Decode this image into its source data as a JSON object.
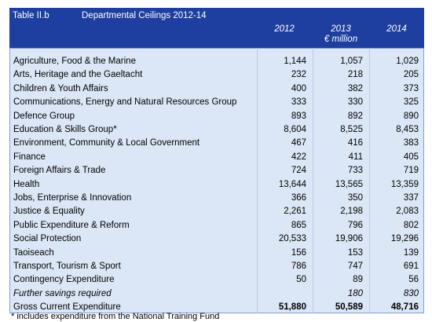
{
  "header": {
    "label": "Table II.b",
    "title": "Departmental Ceilings 2012-14",
    "columns": [
      "2012",
      "2013",
      "2014"
    ],
    "unit": "€ million"
  },
  "rows": [
    {
      "name": "Agriculture, Food & the Marine",
      "values": [
        "1,144",
        "1,057",
        "1,029"
      ]
    },
    {
      "name": "Arts, Heritage and the Gaeltacht",
      "values": [
        "232",
        "218",
        "205"
      ]
    },
    {
      "name": "Children & Youth Affairs",
      "values": [
        "400",
        "382",
        "373"
      ]
    },
    {
      "name": "Communications, Energy and Natural Resources Group",
      "values": [
        "333",
        "330",
        "325"
      ]
    },
    {
      "name": "Defence Group",
      "values": [
        "893",
        "892",
        "890"
      ]
    },
    {
      "name": "Education & Skills Group*",
      "values": [
        "8,604",
        "8,525",
        "8,453"
      ]
    },
    {
      "name": "Environment, Community & Local Government",
      "values": [
        "467",
        "416",
        "383"
      ]
    },
    {
      "name": "Finance",
      "values": [
        "422",
        "411",
        "405"
      ]
    },
    {
      "name": "Foreign Affairs & Trade",
      "values": [
        "724",
        "733",
        "719"
      ]
    },
    {
      "name": "Health",
      "values": [
        "13,644",
        "13,565",
        "13,359"
      ]
    },
    {
      "name": "Jobs, Enterprise & Innovation",
      "values": [
        "366",
        "350",
        "337"
      ]
    },
    {
      "name": "Justice & Equality",
      "values": [
        "2,261",
        "2,198",
        "2,083"
      ]
    },
    {
      "name": "Public Expenditure & Reform",
      "values": [
        "865",
        "796",
        "802"
      ]
    },
    {
      "name": "Social Protection",
      "values": [
        "20,533",
        "19,906",
        "19,296"
      ]
    },
    {
      "name": "Taoiseach",
      "values": [
        "156",
        "153",
        "139"
      ]
    },
    {
      "name": "Transport, Tourism & Sport",
      "values": [
        "786",
        "747",
        "691"
      ]
    },
    {
      "name": "Contingency Expenditure",
      "values": [
        "50",
        "89",
        "56"
      ]
    },
    {
      "name": "Further savings required",
      "values": [
        null,
        "180",
        "830"
      ]
    },
    {
      "name": "Gross Current Expenditure",
      "values": [
        "51,880",
        "50,589",
        "48,716"
      ]
    }
  ],
  "footnote": "* includes expenditure from the National Training Fund"
}
